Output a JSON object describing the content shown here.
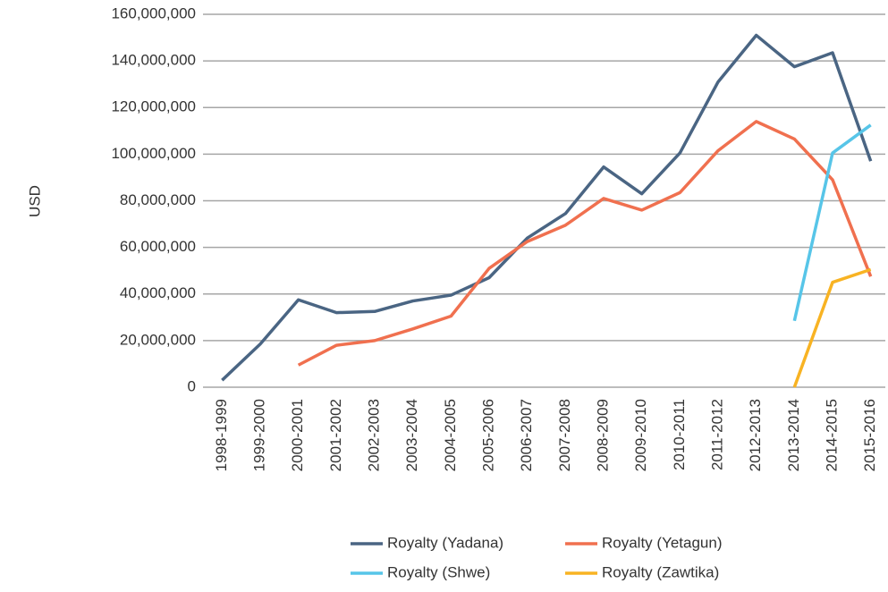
{
  "chart_data": {
    "type": "line",
    "y_label": "USD",
    "categories": [
      "1998-1999",
      "1999-2000",
      "2000-2001",
      "2001-2002",
      "2002-2003",
      "2003-2004",
      "2004-2005",
      "2005-2006",
      "2006-2007",
      "2007-2008",
      "2008-2009",
      "2009-2010",
      "2010-2011",
      "2011-2012",
      "2012-2013",
      "2013-2014",
      "2014-2015",
      "2015-2016"
    ],
    "series": [
      {
        "name": "Royalty (Yadana)",
        "color": "#4a6583",
        "values": [
          3000000,
          18500000,
          37500000,
          32000000,
          32500000,
          37000000,
          39500000,
          47000000,
          64000000,
          74500000,
          94500000,
          83000000,
          100500000,
          131000000,
          151000000,
          137500000,
          143500000,
          97000000
        ]
      },
      {
        "name": "Royalty (Yetagun)",
        "color": "#f0704f",
        "values": [
          null,
          null,
          9500000,
          18000000,
          20000000,
          25000000,
          30500000,
          51000000,
          62500000,
          69500000,
          81000000,
          76000000,
          83500000,
          101500000,
          114000000,
          106500000,
          89000000,
          47500000
        ]
      },
      {
        "name": "Royalty (Shwe)",
        "color": "#57c5e8",
        "values": [
          null,
          null,
          null,
          null,
          null,
          null,
          null,
          null,
          null,
          null,
          null,
          null,
          null,
          null,
          null,
          28500000,
          100500000,
          112500000
        ]
      },
      {
        "name": "Royalty (Zawtika)",
        "color": "#f8b323",
        "values": [
          null,
          null,
          null,
          null,
          null,
          null,
          null,
          null,
          null,
          null,
          null,
          null,
          null,
          null,
          null,
          0,
          45000000,
          50500000
        ]
      }
    ],
    "ylim": [
      0,
      160000000
    ],
    "yticks": [
      0,
      {
        "value": 20000000,
        "label": "20,000,000"
      },
      {
        "value": 40000000,
        "label": "40,000,000"
      },
      {
        "value": 60000000,
        "label": "60,000,000"
      },
      {
        "value": 80000000,
        "label": "80,000,000"
      },
      {
        "value": 100000000,
        "label": "100,000,000"
      },
      {
        "value": 120000000,
        "label": "120,000,000"
      },
      {
        "value": 140000000,
        "label": "140,000,000"
      },
      {
        "value": 160000000,
        "label": "160,000,000"
      }
    ],
    "grid": true
  }
}
